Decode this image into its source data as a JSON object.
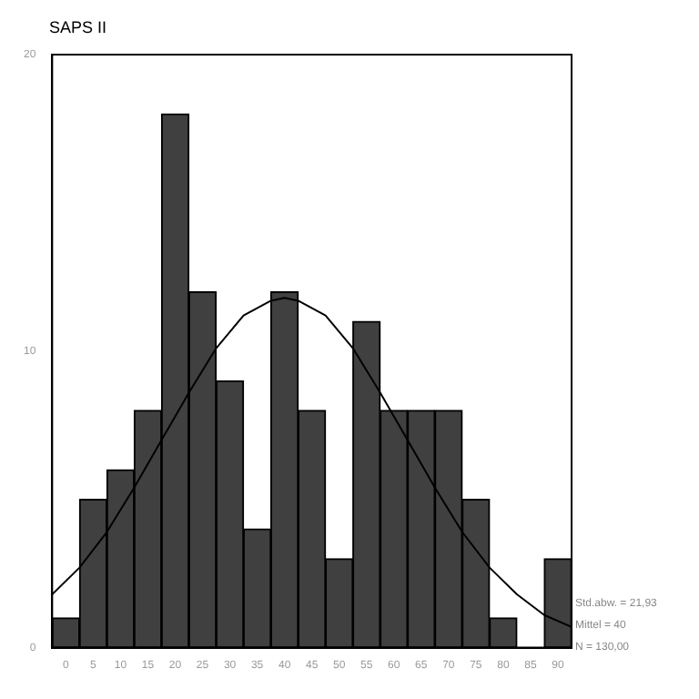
{
  "chart_data": {
    "type": "histogram",
    "title": "SAPS II",
    "bins": [
      -2.5,
      2.5,
      7.5,
      12.5,
      17.5,
      22.5,
      27.5,
      32.5,
      37.5,
      42.5,
      47.5,
      52.5,
      57.5,
      62.5,
      67.5,
      72.5,
      77.5,
      82.5,
      87.5,
      92.5
    ],
    "values": [
      1,
      5,
      6,
      8,
      18,
      12,
      9,
      4,
      12,
      8,
      3,
      11,
      8,
      8,
      8,
      5,
      1,
      0,
      3
    ],
    "color": "#404040",
    "series": [
      {
        "type": "line",
        "color": "#000000",
        "x": [
          -2.5,
          2.5,
          7.5,
          12.5,
          17.5,
          22.5,
          27.5,
          32.5,
          37.5,
          40,
          42.5,
          47.5,
          52.5,
          57.5,
          62.5,
          67.5,
          72.5,
          77.5,
          82.5,
          87.5,
          92.5
        ],
        "values": [
          1.8,
          2.7,
          3.9,
          5.4,
          7.0,
          8.6,
          10.1,
          11.2,
          11.7,
          11.8,
          11.7,
          11.2,
          10.1,
          8.6,
          7.0,
          5.4,
          3.9,
          2.7,
          1.8,
          1.1,
          0.7
        ]
      }
    ],
    "xlim": [
      -2.5,
      92.5
    ],
    "xticks": [
      0,
      5,
      10,
      15,
      20,
      25,
      30,
      35,
      40,
      45,
      50,
      55,
      60,
      65,
      70,
      75,
      80,
      85,
      90
    ],
    "ylim": [
      0,
      20
    ],
    "yticks": [
      0,
      10,
      20
    ],
    "grid": false,
    "legend": false,
    "marker": "none",
    "annotations": [
      "Std.abw. = 21,93",
      "Mittel = 40",
      "N = 130,00"
    ]
  }
}
